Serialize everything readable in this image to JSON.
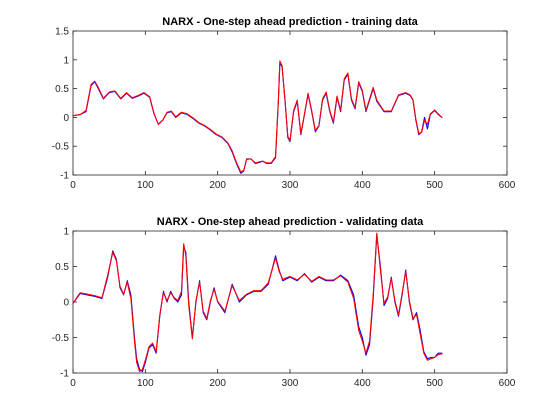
{
  "figure": {
    "background": "#ffffff"
  },
  "colors": {
    "target": "#0000ff",
    "prediction": "#ff0000",
    "axes": "#262626"
  },
  "chart_data": [
    {
      "type": "line",
      "title": "NARX - One-step ahead prediction - training data",
      "xlabel": "",
      "ylabel": "",
      "xlim": [
        0,
        600
      ],
      "ylim": [
        -1,
        1.5
      ],
      "xticks": [
        0,
        100,
        200,
        300,
        400,
        500,
        600
      ],
      "yticks": [
        -1,
        -0.5,
        0,
        0.5,
        1,
        1.5
      ],
      "xtick_labels": [
        "0",
        "100",
        "200",
        "300",
        "400",
        "500",
        "600"
      ],
      "ytick_labels": [
        "-1",
        "-0.5",
        "0",
        "0.5",
        "1",
        "1.5"
      ],
      "grid": false,
      "series": [
        {
          "color": "#0000ff",
          "x": [
            0,
            10,
            18,
            25,
            30,
            35,
            42,
            50,
            58,
            66,
            74,
            82,
            90,
            98,
            106,
            112,
            118,
            124,
            130,
            136,
            142,
            150,
            158,
            166,
            174,
            182,
            190,
            198,
            206,
            214,
            220,
            226,
            232,
            236,
            240,
            246,
            252,
            258,
            262,
            268,
            274,
            280,
            284,
            286,
            289,
            293,
            297,
            300,
            305,
            310,
            315,
            320,
            325,
            330,
            335,
            340,
            345,
            350,
            355,
            360,
            365,
            370,
            375,
            380,
            385,
            390,
            395,
            400,
            405,
            410,
            415,
            420,
            430,
            440,
            450,
            460,
            466,
            470,
            474,
            478,
            482,
            486,
            490,
            494,
            500,
            505,
            510
          ],
          "y": [
            0.03,
            0.05,
            0.1,
            0.55,
            0.62,
            0.5,
            0.32,
            0.43,
            0.45,
            0.32,
            0.42,
            0.33,
            0.37,
            0.42,
            0.35,
            0.06,
            -0.12,
            -0.05,
            0.08,
            0.1,
            0.0,
            0.08,
            0.05,
            -0.02,
            -0.1,
            -0.15,
            -0.22,
            -0.3,
            -0.35,
            -0.45,
            -0.6,
            -0.8,
            -0.97,
            -0.93,
            -0.72,
            -0.72,
            -0.8,
            -0.78,
            -0.76,
            -0.8,
            -0.8,
            -0.7,
            0.3,
            0.95,
            0.88,
            0.3,
            -0.35,
            -0.42,
            0.1,
            0.28,
            -0.3,
            0.05,
            0.4,
            0.1,
            -0.25,
            -0.15,
            0.3,
            0.42,
            0.1,
            -0.1,
            0.35,
            0.1,
            0.65,
            0.75,
            0.3,
            0.15,
            0.6,
            0.45,
            0.1,
            0.3,
            0.5,
            0.28,
            0.1,
            0.1,
            0.38,
            0.42,
            0.38,
            0.3,
            -0.05,
            -0.3,
            -0.25,
            0.0,
            -0.2,
            0.05,
            0.12,
            0.05,
            0.0
          ]
        },
        {
          "color": "#ff0000",
          "x": [
            0,
            10,
            18,
            25,
            30,
            35,
            42,
            50,
            58,
            66,
            74,
            82,
            90,
            98,
            106,
            112,
            118,
            124,
            130,
            136,
            142,
            150,
            158,
            166,
            174,
            182,
            190,
            198,
            206,
            214,
            220,
            226,
            232,
            236,
            240,
            246,
            252,
            258,
            262,
            268,
            274,
            280,
            284,
            286,
            289,
            293,
            297,
            300,
            305,
            310,
            315,
            320,
            325,
            330,
            335,
            340,
            345,
            350,
            355,
            360,
            365,
            370,
            375,
            380,
            385,
            390,
            395,
            400,
            405,
            410,
            415,
            420,
            430,
            440,
            450,
            460,
            466,
            470,
            474,
            478,
            482,
            486,
            490,
            494,
            500,
            505,
            510
          ],
          "y": [
            0.03,
            0.05,
            0.12,
            0.57,
            0.63,
            0.52,
            0.33,
            0.44,
            0.46,
            0.33,
            0.43,
            0.34,
            0.38,
            0.43,
            0.36,
            0.07,
            -0.12,
            -0.05,
            0.09,
            0.11,
            0.01,
            0.09,
            0.06,
            -0.01,
            -0.09,
            -0.14,
            -0.21,
            -0.29,
            -0.34,
            -0.44,
            -0.58,
            -0.78,
            -0.95,
            -0.92,
            -0.73,
            -0.72,
            -0.79,
            -0.77,
            -0.76,
            -0.79,
            -0.79,
            -0.68,
            0.32,
            0.98,
            0.9,
            0.32,
            -0.33,
            -0.4,
            0.12,
            0.3,
            -0.28,
            0.06,
            0.42,
            0.12,
            -0.23,
            -0.14,
            0.32,
            0.44,
            0.12,
            -0.08,
            0.37,
            0.12,
            0.67,
            0.77,
            0.32,
            0.17,
            0.62,
            0.47,
            0.12,
            0.32,
            0.52,
            0.3,
            0.11,
            0.11,
            0.39,
            0.43,
            0.39,
            0.31,
            -0.03,
            -0.28,
            -0.26,
            -0.05,
            -0.12,
            0.06,
            0.13,
            0.06,
            0.0
          ]
        }
      ]
    },
    {
      "type": "line",
      "title": "NARX - One-step ahead prediction - validating data",
      "xlabel": "",
      "ylabel": "",
      "xlim": [
        0,
        600
      ],
      "ylim": [
        -1,
        1
      ],
      "xticks": [
        0,
        100,
        200,
        300,
        400,
        500,
        600
      ],
      "yticks": [
        -1,
        -0.5,
        0,
        0.5,
        1
      ],
      "xtick_labels": [
        "0",
        "100",
        "200",
        "300",
        "400",
        "500",
        "600"
      ],
      "ytick_labels": [
        "-1",
        "-0.5",
        "0",
        "0.5",
        "1"
      ],
      "grid": false,
      "series": [
        {
          "color": "#0000ff",
          "x": [
            0,
            5,
            10,
            20,
            30,
            40,
            48,
            55,
            60,
            65,
            70,
            75,
            80,
            85,
            88,
            92,
            96,
            100,
            105,
            110,
            115,
            120,
            125,
            130,
            135,
            140,
            145,
            150,
            153,
            156,
            160,
            165,
            170,
            175,
            180,
            185,
            190,
            195,
            200,
            210,
            220,
            230,
            240,
            250,
            260,
            270,
            280,
            285,
            290,
            300,
            310,
            320,
            330,
            340,
            350,
            360,
            370,
            380,
            388,
            395,
            400,
            405,
            410,
            415,
            420,
            425,
            430,
            435,
            440,
            445,
            450,
            455,
            460,
            465,
            470,
            475,
            480,
            485,
            490,
            495,
            500,
            505,
            510
          ],
          "y": [
            -0.02,
            0.05,
            0.12,
            0.1,
            0.08,
            0.05,
            0.35,
            0.72,
            0.6,
            0.2,
            0.1,
            0.3,
            0.1,
            -0.5,
            -0.8,
            -0.95,
            -0.98,
            -0.85,
            -0.65,
            -0.6,
            -0.72,
            -0.2,
            0.15,
            0.0,
            0.15,
            0.05,
            0.0,
            0.1,
            0.78,
            0.7,
            0.0,
            -0.5,
            0.0,
            0.3,
            -0.15,
            -0.25,
            0.0,
            0.2,
            0.0,
            -0.15,
            0.25,
            0.0,
            0.1,
            0.15,
            0.15,
            0.25,
            0.65,
            0.45,
            0.3,
            0.35,
            0.3,
            0.4,
            0.28,
            0.35,
            0.3,
            0.3,
            0.38,
            0.3,
            0.1,
            -0.35,
            -0.5,
            -0.75,
            -0.6,
            0.05,
            0.95,
            0.5,
            -0.05,
            0.05,
            0.35,
            0.0,
            -0.2,
            0.1,
            0.45,
            0.0,
            -0.25,
            -0.15,
            -0.4,
            -0.7,
            -0.8,
            -0.78,
            -0.78,
            -0.72,
            -0.72
          ]
        },
        {
          "color": "#ff0000",
          "x": [
            0,
            5,
            10,
            20,
            30,
            40,
            48,
            55,
            60,
            65,
            70,
            75,
            80,
            85,
            88,
            92,
            96,
            100,
            105,
            110,
            115,
            120,
            125,
            130,
            135,
            140,
            145,
            150,
            153,
            156,
            160,
            165,
            170,
            175,
            180,
            185,
            190,
            195,
            200,
            210,
            220,
            230,
            240,
            250,
            260,
            270,
            280,
            285,
            290,
            300,
            310,
            320,
            330,
            340,
            350,
            360,
            370,
            380,
            388,
            395,
            400,
            405,
            410,
            415,
            420,
            425,
            430,
            435,
            440,
            445,
            450,
            455,
            460,
            465,
            470,
            475,
            480,
            485,
            490,
            495,
            500,
            505,
            510
          ],
          "y": [
            -0.02,
            0.06,
            0.13,
            0.11,
            0.09,
            0.06,
            0.38,
            0.7,
            0.58,
            0.22,
            0.11,
            0.28,
            0.05,
            -0.55,
            -0.85,
            -0.98,
            -0.95,
            -0.82,
            -0.63,
            -0.58,
            -0.7,
            -0.18,
            0.13,
            0.02,
            0.13,
            0.06,
            0.02,
            0.15,
            0.82,
            0.65,
            -0.05,
            -0.52,
            0.02,
            0.28,
            -0.13,
            -0.23,
            0.02,
            0.18,
            0.01,
            -0.13,
            0.23,
            0.02,
            0.11,
            0.16,
            0.16,
            0.27,
            0.62,
            0.43,
            0.32,
            0.36,
            0.31,
            0.39,
            0.29,
            0.36,
            0.31,
            0.31,
            0.37,
            0.28,
            0.05,
            -0.4,
            -0.55,
            -0.72,
            -0.55,
            0.1,
            0.97,
            0.45,
            -0.02,
            0.07,
            0.33,
            0.02,
            -0.18,
            0.12,
            0.43,
            0.02,
            -0.23,
            -0.18,
            -0.45,
            -0.72,
            -0.82,
            -0.8,
            -0.78,
            -0.74,
            -0.73
          ]
        }
      ]
    }
  ]
}
